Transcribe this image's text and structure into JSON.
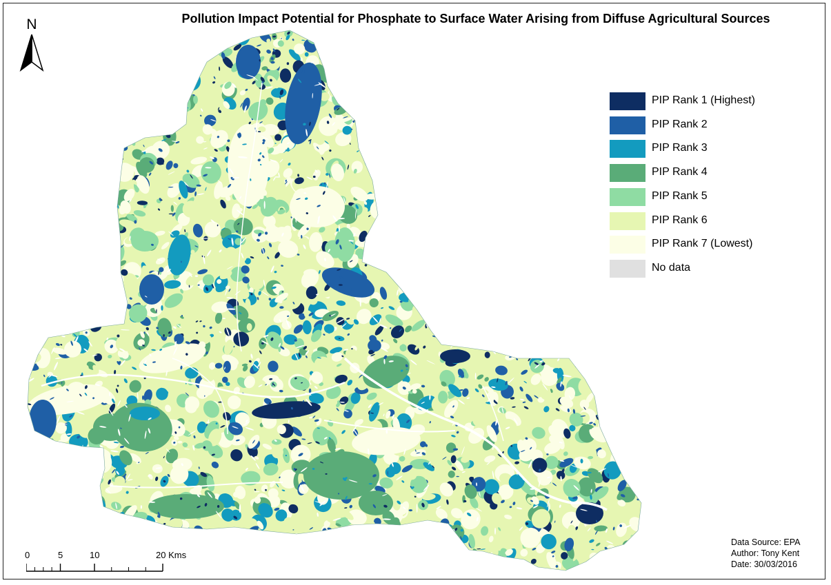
{
  "map": {
    "title": "Pollution Impact Potential for Phosphate to Surface Water Arising from Diffuse Agricultural Sources",
    "north_label": "N",
    "north_icon": "north-arrow-icon",
    "colors": {
      "rank1": "#0e2d62",
      "rank2": "#1f5fa6",
      "rank3": "#139bbf",
      "rank4": "#5aac78",
      "rank5": "#8fdca3",
      "rank6": "#e6f6b2",
      "rank7": "#fcfee6",
      "nodata": "#e0e0e0",
      "river": "#ffffff"
    },
    "legend": [
      {
        "label": "PIP Rank 1 (Highest)",
        "color": "#0e2d62"
      },
      {
        "label": "PIP Rank 2",
        "color": "#1f5fa6"
      },
      {
        "label": "PIP Rank 3",
        "color": "#139bbf"
      },
      {
        "label": "PIP Rank 4",
        "color": "#5aac78"
      },
      {
        "label": "PIP Rank 5",
        "color": "#8fdca3"
      },
      {
        "label": "PIP Rank 6",
        "color": "#e6f6b2"
      },
      {
        "label": "PIP Rank 7 (Lowest)",
        "color": "#fcfee6"
      },
      {
        "label": "No data",
        "color": "#e0e0e0"
      }
    ],
    "credits": {
      "source": "Data Source: EPA",
      "author": "Author: Tony Kent",
      "date": "Date: 30/03/2016"
    },
    "scalebar": {
      "labels": [
        "0",
        "5",
        "10",
        "20 Kms"
      ],
      "units": "Kms"
    }
  }
}
